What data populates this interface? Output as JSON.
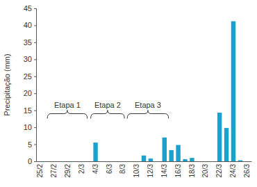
{
  "chart_data": {
    "type": "bar",
    "y_label": "Precipitação (mm)",
    "categories": [
      "25/2",
      null,
      "27/2",
      null,
      "29/2",
      null,
      "2/3",
      null,
      "4/3",
      null,
      "6/3",
      null,
      "8/3",
      null,
      "10/3",
      null,
      "12/3",
      null,
      "14/3",
      null,
      "16/3",
      null,
      "18/3",
      null,
      "20/3",
      null,
      "22/3",
      null,
      "24/3",
      null,
      "26/3"
    ],
    "values": [
      0,
      0,
      0,
      0,
      0,
      0,
      0,
      0,
      5.5,
      0,
      0,
      0,
      0,
      0,
      0,
      1.7,
      0.8,
      0,
      7,
      3.3,
      4.8,
      0.6,
      1,
      0,
      0,
      0,
      14.3,
      9.8,
      41.2,
      0.3,
      0
    ],
    "color": "#1ba1cd",
    "ylim": [
      0,
      45
    ],
    "yticks": [
      0,
      5,
      10,
      15,
      20,
      25,
      30,
      35,
      40,
      45
    ],
    "grid": false,
    "annotations": [
      "Etapa 1",
      "Etapa 2",
      "Etapa 3"
    ]
  }
}
